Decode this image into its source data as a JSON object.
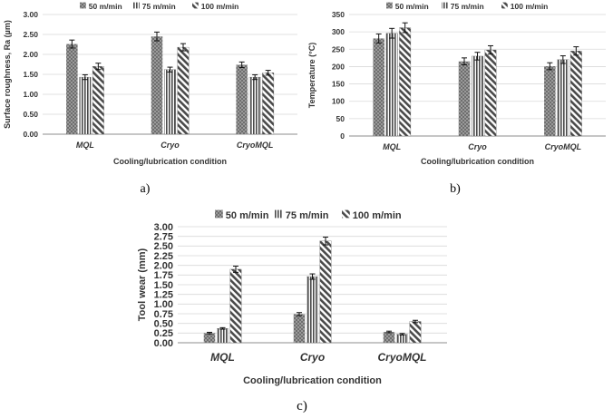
{
  "chart_data": [
    {
      "type": "bar",
      "panel_label": "a)",
      "xlabel": "Cooling/lubrication condition",
      "ylabel": "Surface roughness, Ra (µm)",
      "ylim": [
        0,
        3
      ],
      "yticks": [
        "0.00",
        "0.50",
        "1.00",
        "1.50",
        "2.00",
        "2.50",
        "3.00"
      ],
      "categories": [
        "MQL",
        "Cryo",
        "CryoMQL"
      ],
      "series": [
        {
          "name": "50 m/min",
          "values": [
            2.26,
            2.45,
            1.74
          ],
          "errors": [
            0.1,
            0.11,
            0.07
          ]
        },
        {
          "name": "75 m/min",
          "values": [
            1.43,
            1.62,
            1.43
          ],
          "errors": [
            0.06,
            0.06,
            0.06
          ]
        },
        {
          "name": "100 m/min",
          "values": [
            1.7,
            2.18,
            1.54
          ],
          "errors": [
            0.08,
            0.09,
            0.06
          ]
        }
      ],
      "grid": true,
      "legend": "top"
    },
    {
      "type": "bar",
      "panel_label": "b)",
      "xlabel": "Cooling/lubrication condition",
      "ylabel": "Temperature (°C)",
      "ylim": [
        0,
        350
      ],
      "yticks": [
        "0",
        "50",
        "100",
        "150",
        "200",
        "250",
        "300",
        "350"
      ],
      "categories": [
        "MQL",
        "Cryo",
        "CryoMQL"
      ],
      "series": [
        {
          "name": "50 m/min",
          "values": [
            281,
            215,
            201
          ],
          "errors": [
            13,
            10,
            10
          ]
        },
        {
          "name": "75 m/min",
          "values": [
            296,
            230,
            220
          ],
          "errors": [
            14,
            11,
            11
          ]
        },
        {
          "name": "100 m/min",
          "values": [
            312,
            248,
            245
          ],
          "errors": [
            14,
            12,
            12
          ]
        }
      ],
      "grid": true,
      "legend": "top"
    },
    {
      "type": "bar",
      "panel_label": "c)",
      "xlabel": "Cooling/lubrication condition",
      "ylabel": "Tool wear (mm)",
      "ylim": [
        0,
        3
      ],
      "yticks": [
        "0.00",
        "0.25",
        "0.50",
        "0.75",
        "1.00",
        "1.25",
        "1.50",
        "1.75",
        "2.00",
        "2.25",
        "2.50",
        "2.75",
        "3.00"
      ],
      "categories": [
        "MQL",
        "Cryo",
        "CryoMQL"
      ],
      "series": [
        {
          "name": "50 m/min",
          "values": [
            0.25,
            0.74,
            0.28
          ],
          "errors": [
            0.02,
            0.04,
            0.02
          ]
        },
        {
          "name": "75 m/min",
          "values": [
            0.37,
            1.71,
            0.22
          ],
          "errors": [
            0.02,
            0.07,
            0.02
          ]
        },
        {
          "name": "100 m/min",
          "values": [
            1.9,
            2.63,
            0.55
          ],
          "errors": [
            0.08,
            0.1,
            0.03
          ]
        }
      ],
      "grid": true,
      "legend": "top"
    }
  ],
  "colors": {
    "series_fill": [
      "#7a7a7a",
      "#8a8a8a",
      "#8a8a8a"
    ],
    "grid": "#d9d9d9",
    "axis": "#8c8c8c",
    "text": "#333333"
  }
}
